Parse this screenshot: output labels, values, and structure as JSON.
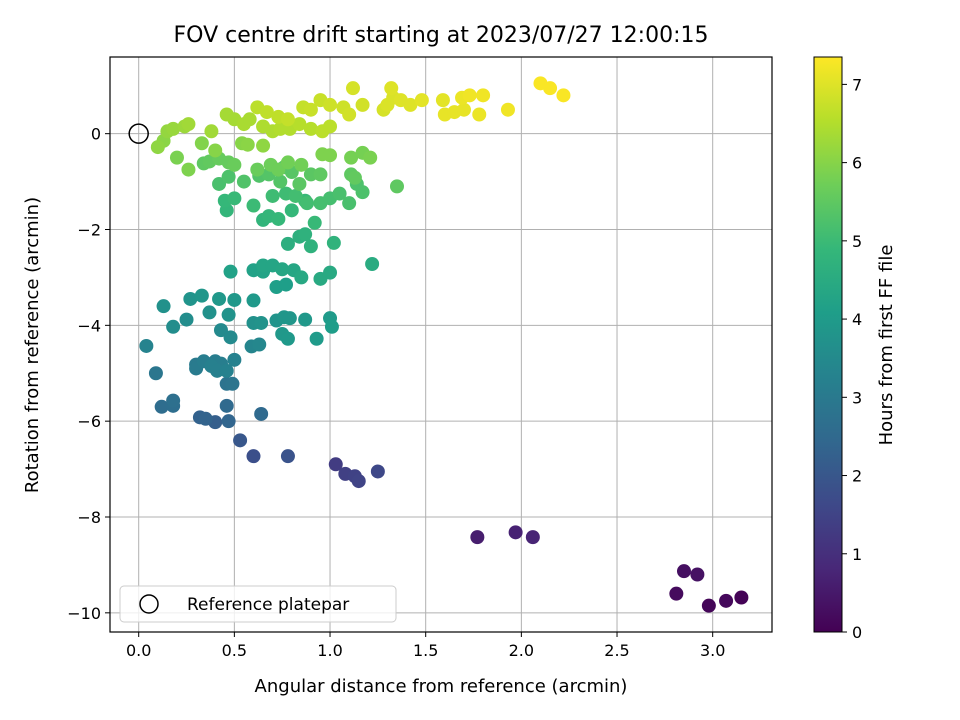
{
  "chart_data": {
    "type": "scatter",
    "title": "FOV centre drift starting at 2023/07/27 12:00:15",
    "xlabel": "Angular distance from reference (arcmin)",
    "ylabel": "Rotation from reference (arcmin)",
    "xlim": [
      -0.15,
      3.31
    ],
    "ylim": [
      -10.4,
      1.6
    ],
    "xticks": [
      0.0,
      0.5,
      1.0,
      1.5,
      2.0,
      2.5,
      3.0
    ],
    "xtick_labels": [
      "0.0",
      "0.5",
      "1.0",
      "1.5",
      "2.0",
      "2.5",
      "3.0"
    ],
    "yticks": [
      -10,
      -8,
      -6,
      -4,
      -2,
      0
    ],
    "ytick_labels": [
      "−10",
      "−8",
      "−6",
      "−4",
      "−2",
      "0"
    ],
    "grid": true,
    "legend": {
      "placement": "lower-left",
      "entries": [
        "Reference platepar"
      ]
    },
    "reference_point": {
      "x": 0.0,
      "y": 0.0
    },
    "colorbar": {
      "label": "Hours from first FF file",
      "range": [
        0,
        7.35
      ],
      "ticks": [
        0,
        1,
        2,
        3,
        4,
        5,
        6,
        7
      ],
      "tick_labels": [
        "0",
        "1",
        "2",
        "3",
        "4",
        "5",
        "6",
        "7"
      ],
      "colormap": "viridis",
      "stops": [
        "#440154",
        "#482878",
        "#3e4989",
        "#31688e",
        "#26828e",
        "#1f9e89",
        "#35b779",
        "#6ece58",
        "#b5de2b",
        "#fde725"
      ]
    },
    "series": [
      {
        "points": [
          [
            3.15,
            -9.68,
            0.05
          ],
          [
            2.98,
            -9.85,
            0.1
          ],
          [
            3.07,
            -9.75,
            0.15
          ],
          [
            2.81,
            -9.6,
            0.2
          ],
          [
            2.85,
            -9.13,
            0.3
          ],
          [
            2.92,
            -9.2,
            0.35
          ],
          [
            1.77,
            -8.42,
            0.6
          ],
          [
            1.97,
            -8.32,
            0.7
          ],
          [
            2.06,
            -8.42,
            0.75
          ],
          [
            1.03,
            -6.9,
            1.3
          ],
          [
            1.08,
            -7.1,
            1.4
          ],
          [
            1.13,
            -7.15,
            1.45
          ],
          [
            1.15,
            -7.25,
            1.5
          ],
          [
            1.25,
            -7.05,
            1.6
          ],
          [
            0.6,
            -6.73,
            1.8
          ],
          [
            0.78,
            -6.73,
            1.9
          ],
          [
            0.53,
            -6.4,
            2.0
          ],
          [
            0.4,
            -6.02,
            2.2
          ],
          [
            0.32,
            -5.92,
            2.3
          ],
          [
            0.35,
            -5.95,
            2.35
          ],
          [
            0.47,
            -6.0,
            2.4
          ],
          [
            0.64,
            -5.85,
            2.5
          ],
          [
            0.46,
            -5.68,
            2.5
          ],
          [
            0.12,
            -5.7,
            2.6
          ],
          [
            0.18,
            -5.68,
            2.65
          ],
          [
            0.18,
            -5.57,
            2.7
          ],
          [
            0.09,
            -5.0,
            2.9
          ],
          [
            0.46,
            -5.22,
            2.8
          ],
          [
            0.49,
            -5.22,
            2.85
          ],
          [
            0.3,
            -4.82,
            3.0
          ],
          [
            0.3,
            -4.9,
            3.05
          ],
          [
            0.34,
            -4.75,
            3.1
          ],
          [
            0.4,
            -4.75,
            3.1
          ],
          [
            0.43,
            -4.8,
            3.15
          ],
          [
            0.38,
            -4.85,
            3.2
          ],
          [
            0.41,
            -4.95,
            3.2
          ],
          [
            0.46,
            -4.95,
            3.25
          ],
          [
            0.5,
            -4.72,
            3.25
          ],
          [
            0.04,
            -4.43,
            3.3
          ],
          [
            0.59,
            -4.44,
            3.35
          ],
          [
            0.63,
            -4.4,
            3.4
          ],
          [
            0.43,
            -4.1,
            3.5
          ],
          [
            0.48,
            -4.25,
            3.5
          ],
          [
            0.18,
            -4.03,
            3.6
          ],
          [
            0.25,
            -3.88,
            3.6
          ],
          [
            0.37,
            -3.73,
            3.7
          ],
          [
            0.13,
            -3.6,
            3.7
          ],
          [
            0.47,
            -3.78,
            3.75
          ],
          [
            0.6,
            -3.95,
            3.7
          ],
          [
            0.64,
            -3.95,
            3.75
          ],
          [
            0.72,
            -3.9,
            3.8
          ],
          [
            0.76,
            -3.83,
            3.85
          ],
          [
            0.79,
            -3.85,
            3.85
          ],
          [
            0.87,
            -3.88,
            3.9
          ],
          [
            0.75,
            -4.18,
            3.9
          ],
          [
            0.78,
            -4.28,
            3.95
          ],
          [
            0.93,
            -4.28,
            4.0
          ],
          [
            1.0,
            -3.85,
            4.0
          ],
          [
            1.01,
            -4.03,
            4.05
          ],
          [
            0.27,
            -3.45,
            3.8
          ],
          [
            0.33,
            -3.38,
            3.85
          ],
          [
            0.42,
            -3.45,
            3.9
          ],
          [
            0.5,
            -3.47,
            3.9
          ],
          [
            0.6,
            -3.48,
            3.95
          ],
          [
            0.72,
            -3.2,
            4.1
          ],
          [
            0.77,
            -3.15,
            4.1
          ],
          [
            0.48,
            -2.88,
            4.2
          ],
          [
            0.6,
            -2.85,
            4.2
          ],
          [
            0.65,
            -2.88,
            4.25
          ],
          [
            0.65,
            -2.75,
            4.3
          ],
          [
            0.7,
            -2.75,
            4.3
          ],
          [
            0.75,
            -2.83,
            4.35
          ],
          [
            0.81,
            -2.85,
            4.35
          ],
          [
            0.85,
            -3.0,
            4.4
          ],
          [
            0.95,
            -3.03,
            4.45
          ],
          [
            1.0,
            -2.9,
            4.45
          ],
          [
            1.22,
            -2.72,
            4.5
          ],
          [
            0.78,
            -2.3,
            4.6
          ],
          [
            0.84,
            -2.15,
            4.65
          ],
          [
            0.87,
            -2.1,
            4.7
          ],
          [
            0.9,
            -2.35,
            4.7
          ],
          [
            1.02,
            -2.28,
            4.75
          ],
          [
            0.65,
            -1.8,
            4.8
          ],
          [
            0.68,
            -1.72,
            4.85
          ],
          [
            0.73,
            -1.78,
            4.9
          ],
          [
            0.8,
            -1.6,
            4.9
          ],
          [
            0.87,
            -1.4,
            4.95
          ],
          [
            0.92,
            -1.86,
            4.95
          ],
          [
            0.46,
            -1.6,
            4.85
          ],
          [
            0.45,
            -1.4,
            4.9
          ],
          [
            0.5,
            -1.35,
            4.95
          ],
          [
            0.6,
            -1.5,
            5.0
          ],
          [
            0.7,
            -1.3,
            5.05
          ],
          [
            0.77,
            -1.25,
            5.05
          ],
          [
            0.82,
            -1.3,
            5.1
          ],
          [
            0.88,
            -1.45,
            5.1
          ],
          [
            0.95,
            -1.45,
            5.15
          ],
          [
            1.0,
            -1.35,
            5.15
          ],
          [
            1.05,
            -1.25,
            5.2
          ],
          [
            1.1,
            -1.45,
            5.2
          ],
          [
            1.14,
            -1.05,
            5.25
          ],
          [
            1.17,
            -1.22,
            5.25
          ],
          [
            0.42,
            -1.05,
            5.2
          ],
          [
            0.47,
            -0.9,
            5.25
          ],
          [
            0.55,
            -1.0,
            5.3
          ],
          [
            0.63,
            -0.88,
            5.3
          ],
          [
            0.68,
            -0.85,
            5.35
          ],
          [
            0.74,
            -1.0,
            5.35
          ],
          [
            0.76,
            -0.7,
            5.4
          ],
          [
            0.8,
            -0.8,
            5.4
          ],
          [
            0.84,
            -1.05,
            5.45
          ],
          [
            0.9,
            -0.85,
            5.45
          ],
          [
            0.95,
            -0.85,
            5.5
          ],
          [
            1.11,
            -0.85,
            5.5
          ],
          [
            1.13,
            -0.92,
            5.55
          ],
          [
            1.35,
            -1.1,
            5.5
          ],
          [
            0.34,
            -0.62,
            5.5
          ],
          [
            0.37,
            -0.58,
            5.55
          ],
          [
            0.42,
            -0.52,
            5.6
          ],
          [
            0.47,
            -0.6,
            5.6
          ],
          [
            0.5,
            -0.65,
            5.65
          ],
          [
            0.62,
            -0.75,
            5.65
          ],
          [
            0.69,
            -0.65,
            5.7
          ],
          [
            0.73,
            -0.75,
            5.7
          ],
          [
            0.78,
            -0.6,
            5.75
          ],
          [
            0.85,
            -0.65,
            5.75
          ],
          [
            1.11,
            -0.5,
            5.8
          ],
          [
            1.17,
            -0.4,
            5.8
          ],
          [
            1.21,
            -0.5,
            5.85
          ],
          [
            0.96,
            -0.43,
            5.9
          ],
          [
            1.0,
            -0.45,
            5.9
          ],
          [
            0.2,
            -0.5,
            5.85
          ],
          [
            0.26,
            -0.75,
            5.9
          ],
          [
            0.33,
            -0.2,
            5.95
          ],
          [
            0.4,
            -0.35,
            6.0
          ],
          [
            0.54,
            -0.2,
            6.0
          ],
          [
            0.57,
            -0.23,
            6.05
          ],
          [
            0.65,
            -0.25,
            6.1
          ],
          [
            0.13,
            -0.15,
            6.05
          ],
          [
            0.1,
            -0.28,
            6.1
          ],
          [
            0.15,
            0.05,
            6.15
          ],
          [
            0.18,
            0.1,
            6.2
          ],
          [
            0.24,
            0.15,
            6.25
          ],
          [
            0.26,
            0.2,
            6.3
          ],
          [
            0.38,
            0.05,
            6.3
          ],
          [
            0.46,
            0.4,
            6.35
          ],
          [
            0.5,
            0.3,
            6.35
          ],
          [
            0.55,
            0.2,
            6.4
          ],
          [
            0.58,
            0.3,
            6.4
          ],
          [
            0.65,
            0.15,
            6.45
          ],
          [
            0.7,
            0.05,
            6.45
          ],
          [
            0.74,
            0.1,
            6.5
          ],
          [
            0.79,
            0.1,
            6.5
          ],
          [
            0.84,
            0.2,
            6.55
          ],
          [
            0.9,
            0.1,
            6.55
          ],
          [
            0.96,
            0.05,
            6.6
          ],
          [
            1.0,
            0.15,
            6.6
          ],
          [
            0.62,
            0.55,
            6.6
          ],
          [
            0.67,
            0.45,
            6.65
          ],
          [
            0.73,
            0.35,
            6.65
          ],
          [
            0.78,
            0.3,
            6.7
          ],
          [
            0.86,
            0.55,
            6.7
          ],
          [
            0.9,
            0.5,
            6.75
          ],
          [
            0.95,
            0.7,
            6.75
          ],
          [
            1.0,
            0.6,
            6.8
          ],
          [
            1.07,
            0.55,
            6.8
          ],
          [
            1.1,
            0.4,
            6.85
          ],
          [
            1.17,
            0.6,
            6.85
          ],
          [
            1.12,
            0.95,
            6.9
          ],
          [
            1.28,
            0.5,
            6.9
          ],
          [
            1.3,
            0.6,
            6.95
          ],
          [
            1.33,
            0.75,
            6.95
          ],
          [
            1.32,
            0.95,
            7.0
          ],
          [
            1.37,
            0.7,
            7.0
          ],
          [
            1.42,
            0.6,
            7.0
          ],
          [
            1.48,
            0.7,
            7.05
          ],
          [
            1.59,
            0.7,
            7.05
          ],
          [
            1.6,
            0.4,
            7.1
          ],
          [
            1.65,
            0.45,
            7.1
          ],
          [
            1.7,
            0.5,
            7.1
          ],
          [
            1.78,
            0.4,
            7.15
          ],
          [
            1.69,
            0.75,
            7.15
          ],
          [
            1.73,
            0.8,
            7.2
          ],
          [
            1.8,
            0.8,
            7.2
          ],
          [
            1.93,
            0.5,
            7.2
          ],
          [
            2.1,
            1.05,
            7.3
          ],
          [
            2.15,
            0.95,
            7.3
          ],
          [
            2.22,
            0.8,
            7.3
          ]
        ]
      }
    ]
  }
}
